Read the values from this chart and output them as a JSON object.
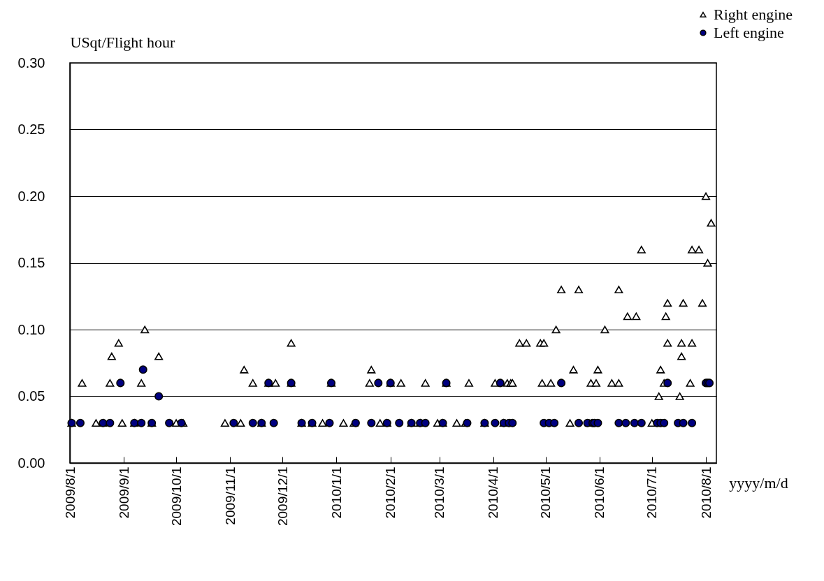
{
  "chart_data": {
    "type": "scatter",
    "ylabel": "USqt/Flight hour",
    "xlabel": "yyyy/m/d",
    "xlim": [
      "2009-08-01",
      "2010-08-07"
    ],
    "xticks": [
      {
        "value": "2009-08-01",
        "label": "2009/8/1"
      },
      {
        "value": "2009-09-01",
        "label": "2009/9/1"
      },
      {
        "value": "2009-10-01",
        "label": "2009/10/1"
      },
      {
        "value": "2009-11-01",
        "label": "2009/11/1"
      },
      {
        "value": "2009-12-01",
        "label": "2009/12/1"
      },
      {
        "value": "2010-01-01",
        "label": "2010/1/1"
      },
      {
        "value": "2010-02-01",
        "label": "2010/2/1"
      },
      {
        "value": "2010-03-01",
        "label": "2010/3/1"
      },
      {
        "value": "2010-04-01",
        "label": "2010/4/1"
      },
      {
        "value": "2010-05-01",
        "label": "2010/5/1"
      },
      {
        "value": "2010-06-01",
        "label": "2010/6/1"
      },
      {
        "value": "2010-07-01",
        "label": "2010/7/1"
      },
      {
        "value": "2010-08-01",
        "label": "2010/8/1"
      }
    ],
    "ylim": [
      0,
      0.3
    ],
    "yticks": [
      {
        "value": 0,
        "label": "0.00"
      },
      {
        "value": 0.05,
        "label": "0.05"
      },
      {
        "value": 0.1,
        "label": "0.10"
      },
      {
        "value": 0.15,
        "label": "0.15"
      },
      {
        "value": 0.2,
        "label": "0.20"
      },
      {
        "value": 0.25,
        "label": "0.25"
      },
      {
        "value": 0.3,
        "label": "0.30"
      }
    ],
    "grid": "y",
    "legend": "top right",
    "series": [
      {
        "name": "Right engine",
        "color": "#ffffff",
        "marker": "triangle",
        "x": [
          "2009-08-02",
          "2009-08-08",
          "2009-08-16",
          "2009-08-20",
          "2009-08-24",
          "2009-08-25",
          "2009-08-29",
          "2009-08-31",
          "2009-09-07",
          "2009-09-11",
          "2009-09-13",
          "2009-09-17",
          "2009-09-21",
          "2009-10-01",
          "2009-10-05",
          "2009-10-29",
          "2009-11-07",
          "2009-11-09",
          "2009-11-14",
          "2009-11-19",
          "2009-11-23",
          "2009-11-27",
          "2009-12-06",
          "2009-12-06",
          "2009-12-12",
          "2009-12-18",
          "2009-12-24",
          "2009-12-29",
          "2010-01-05",
          "2010-01-11",
          "2010-01-20",
          "2010-01-21",
          "2010-01-26",
          "2010-01-30",
          "2010-02-01",
          "2010-02-07",
          "2010-02-13",
          "2010-02-18",
          "2010-02-21",
          "2010-02-28",
          "2010-03-03",
          "2010-03-05",
          "2010-03-11",
          "2010-03-16",
          "2010-03-18",
          "2010-03-27",
          "2010-04-02",
          "2010-04-07",
          "2010-04-09",
          "2010-04-11",
          "2010-04-12",
          "2010-04-16",
          "2010-04-20",
          "2010-04-29",
          "2010-04-28",
          "2010-04-30",
          "2010-05-04",
          "2010-05-07",
          "2010-05-10",
          "2010-05-15",
          "2010-05-17",
          "2010-05-20",
          "2010-05-26",
          "2010-05-27",
          "2010-05-30",
          "2010-05-31",
          "2010-06-04",
          "2010-06-08",
          "2010-06-12",
          "2010-06-12",
          "2010-06-17",
          "2010-06-22",
          "2010-06-25",
          "2010-07-01",
          "2010-07-05",
          "2010-07-06",
          "2010-07-08",
          "2010-07-09",
          "2010-07-10",
          "2010-07-10",
          "2010-07-17",
          "2010-07-18",
          "2010-07-18",
          "2010-07-19",
          "2010-07-23",
          "2010-07-24",
          "2010-07-24",
          "2010-07-28",
          "2010-07-30",
          "2010-08-01",
          "2010-08-02",
          "2010-08-04"
        ],
        "values": [
          0.03,
          0.06,
          0.03,
          0.03,
          0.06,
          0.08,
          0.09,
          0.03,
          0.03,
          0.06,
          0.1,
          0.03,
          0.08,
          0.03,
          0.03,
          0.03,
          0.03,
          0.07,
          0.06,
          0.03,
          0.06,
          0.06,
          0.06,
          0.09,
          0.03,
          0.03,
          0.03,
          0.06,
          0.03,
          0.03,
          0.06,
          0.07,
          0.03,
          0.03,
          0.06,
          0.06,
          0.03,
          0.03,
          0.06,
          0.03,
          0.03,
          0.06,
          0.03,
          0.03,
          0.06,
          0.03,
          0.06,
          0.03,
          0.06,
          0.06,
          0.06,
          0.09,
          0.09,
          0.06,
          0.09,
          0.09,
          0.06,
          0.1,
          0.13,
          0.03,
          0.07,
          0.13,
          0.03,
          0.06,
          0.06,
          0.07,
          0.1,
          0.06,
          0.06,
          0.13,
          0.11,
          0.11,
          0.16,
          0.03,
          0.05,
          0.07,
          0.06,
          0.11,
          0.09,
          0.12,
          0.05,
          0.08,
          0.09,
          0.12,
          0.06,
          0.09,
          0.16,
          0.16,
          0.12,
          0.2,
          0.15,
          0.18
        ]
      },
      {
        "name": "Left engine",
        "color": "#000080",
        "marker": "circle",
        "x": [
          "2009-08-02",
          "2009-08-07",
          "2009-08-20",
          "2009-08-24",
          "2009-08-30",
          "2009-09-07",
          "2009-09-11",
          "2009-09-12",
          "2009-09-17",
          "2009-09-21",
          "2009-09-27",
          "2009-10-04",
          "2009-11-03",
          "2009-11-14",
          "2009-11-19",
          "2009-11-23",
          "2009-11-26",
          "2009-12-06",
          "2009-12-12",
          "2009-12-18",
          "2009-12-28",
          "2009-12-29",
          "2010-01-12",
          "2010-01-21",
          "2010-01-25",
          "2010-01-30",
          "2010-02-01",
          "2010-02-06",
          "2010-02-13",
          "2010-02-18",
          "2010-02-21",
          "2010-03-03",
          "2010-03-05",
          "2010-03-17",
          "2010-03-27",
          "2010-04-02",
          "2010-04-05",
          "2010-04-07",
          "2010-04-10",
          "2010-04-12",
          "2010-04-30",
          "2010-05-03",
          "2010-05-06",
          "2010-05-10",
          "2010-05-20",
          "2010-05-25",
          "2010-05-28",
          "2010-05-29",
          "2010-05-31",
          "2010-06-12",
          "2010-06-16",
          "2010-06-21",
          "2010-06-25",
          "2010-07-04",
          "2010-07-06",
          "2010-07-08",
          "2010-07-10",
          "2010-07-16",
          "2010-07-19",
          "2010-07-24",
          "2010-08-01",
          "2010-08-02",
          "2010-08-03"
        ],
        "values": [
          0.03,
          0.03,
          0.03,
          0.03,
          0.06,
          0.03,
          0.03,
          0.07,
          0.03,
          0.05,
          0.03,
          0.03,
          0.03,
          0.03,
          0.03,
          0.06,
          0.03,
          0.06,
          0.03,
          0.03,
          0.03,
          0.06,
          0.03,
          0.03,
          0.06,
          0.03,
          0.06,
          0.03,
          0.03,
          0.03,
          0.03,
          0.03,
          0.06,
          0.03,
          0.03,
          0.03,
          0.06,
          0.03,
          0.03,
          0.03,
          0.03,
          0.03,
          0.03,
          0.06,
          0.03,
          0.03,
          0.03,
          0.03,
          0.03,
          0.03,
          0.03,
          0.03,
          0.03,
          0.03,
          0.03,
          0.03,
          0.06,
          0.03,
          0.03,
          0.03,
          0.06,
          0.06,
          0.06
        ]
      }
    ]
  }
}
